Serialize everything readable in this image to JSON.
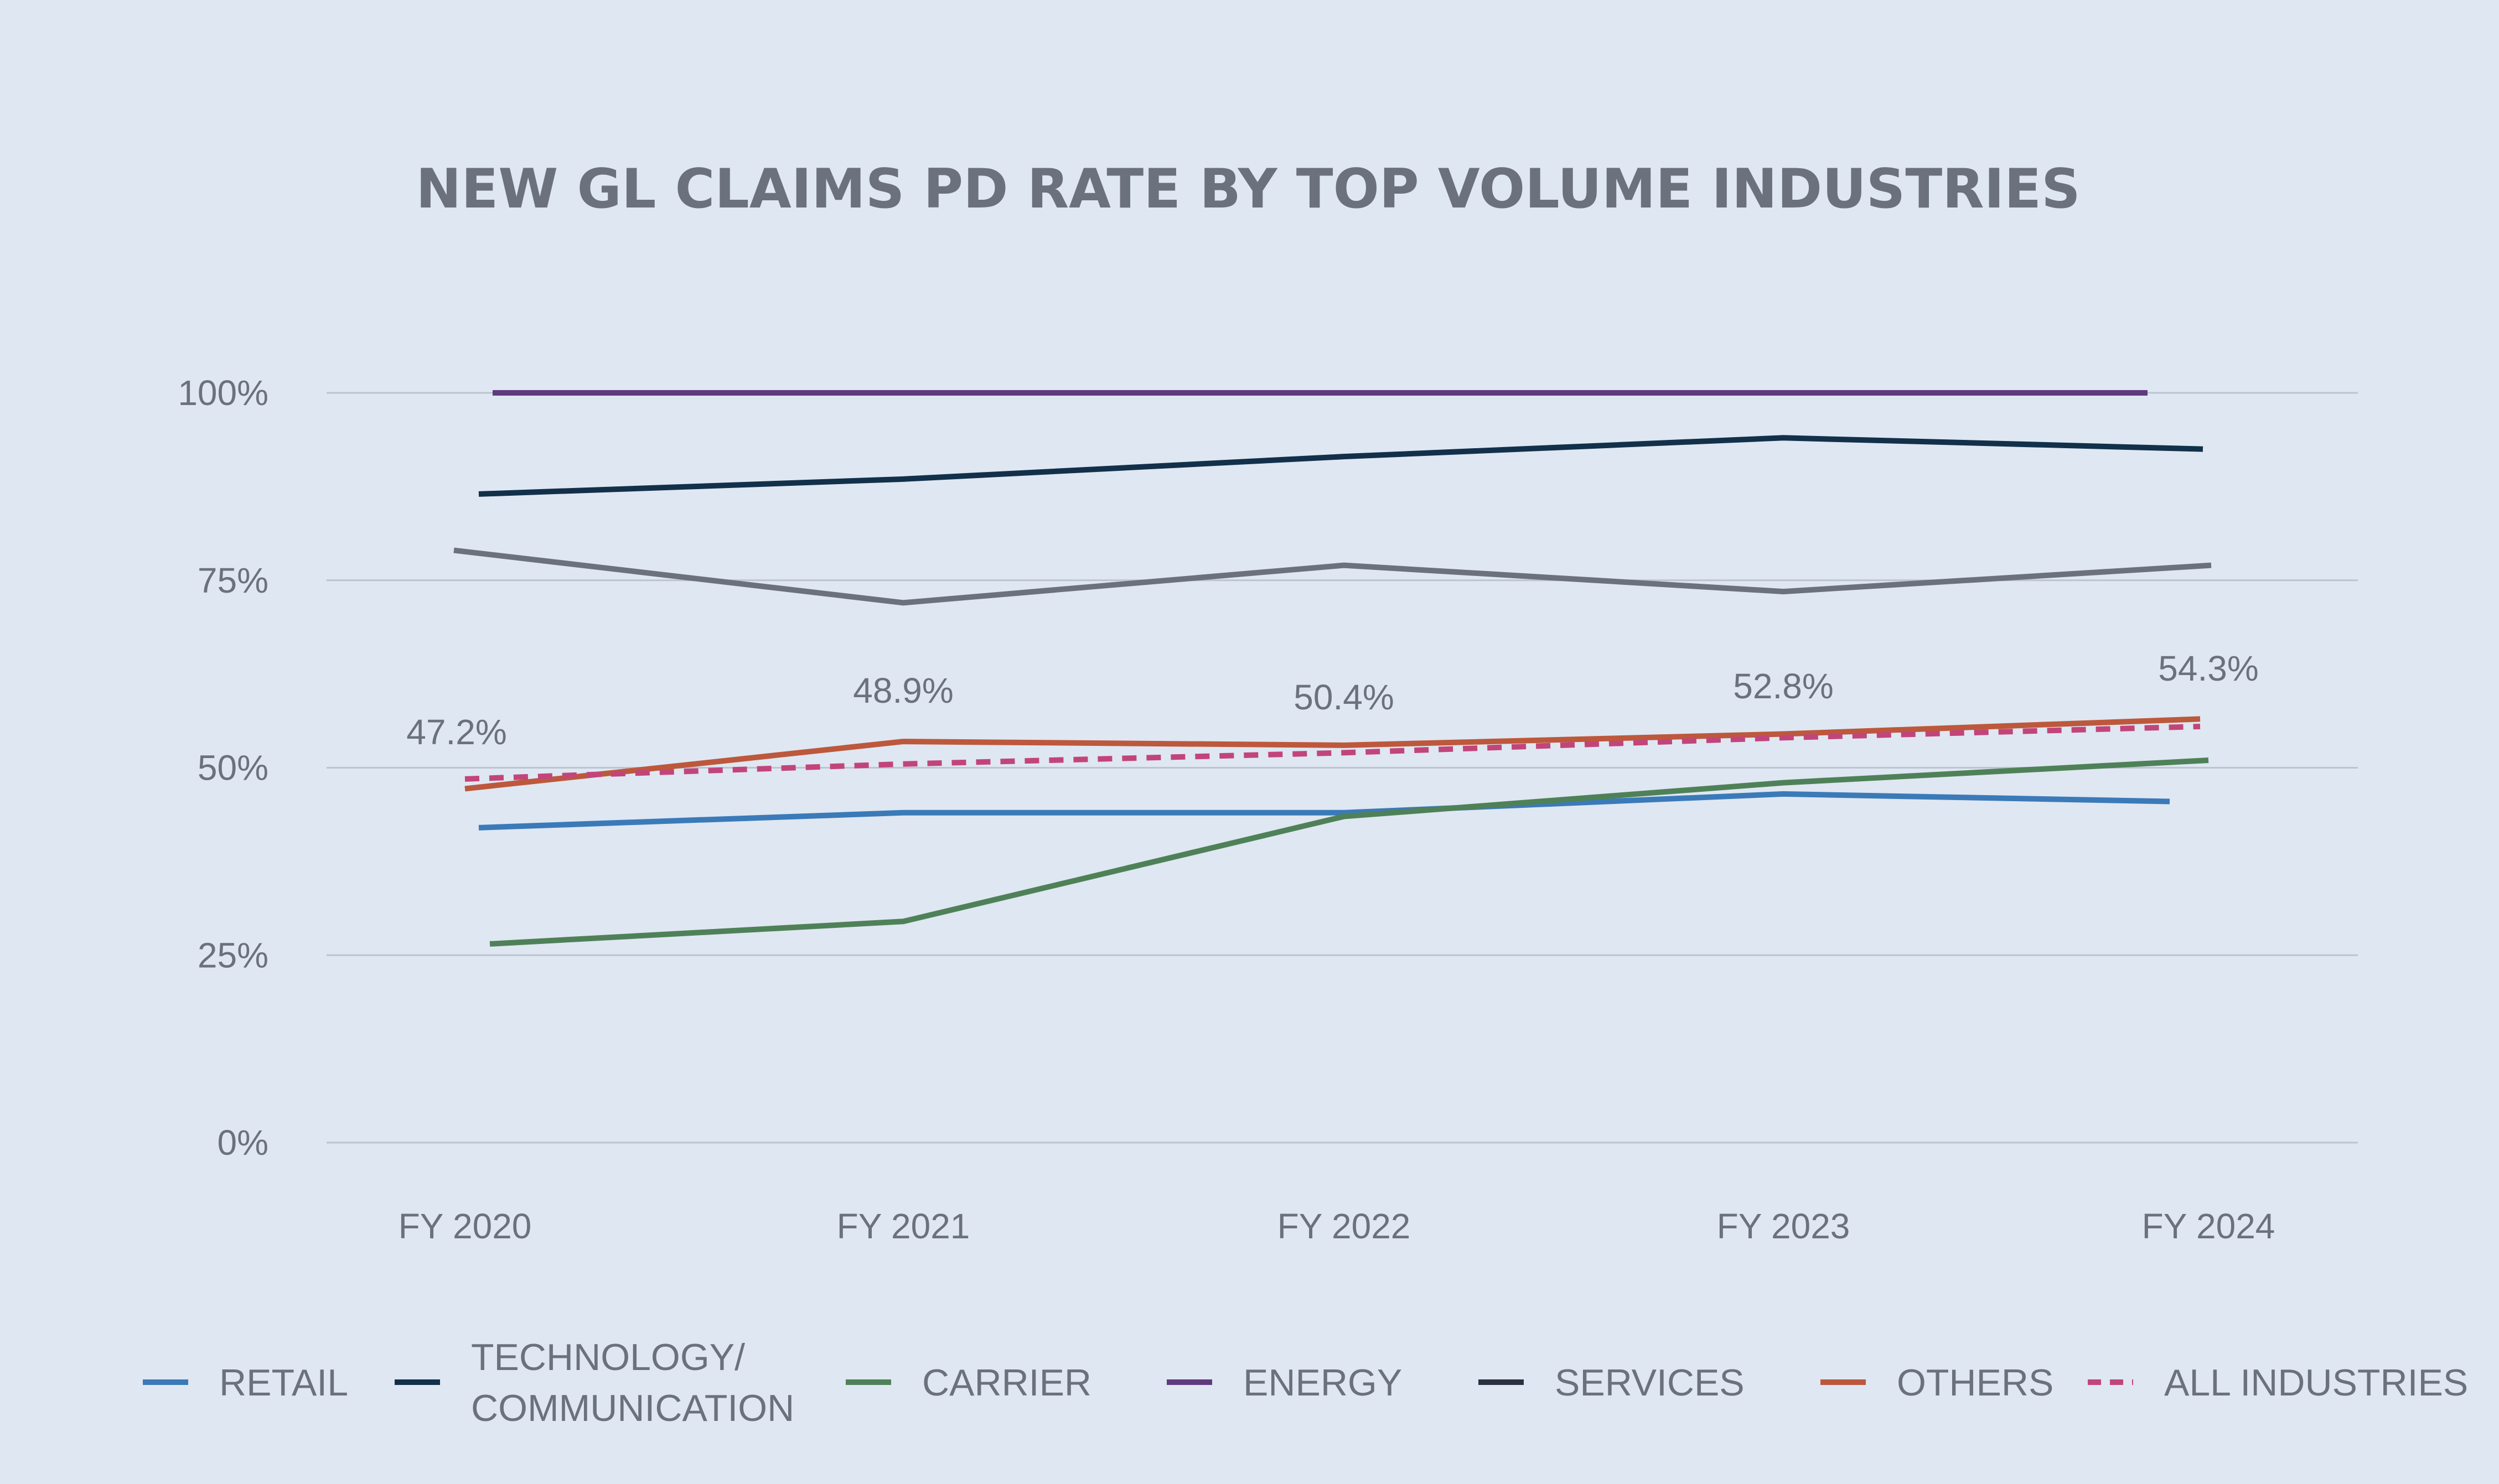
{
  "chart_data": {
    "type": "line",
    "title": "NEW GL CLAIMS PD RATE BY TOP VOLUME INDUSTRIES",
    "xlabel": "",
    "ylabel": "",
    "categories": [
      "FY 2020",
      "FY 2021",
      "FY 2022",
      "FY 2023",
      "FY 2024"
    ],
    "y_ticks": [
      "0%",
      "25%",
      "50%",
      "75%",
      "100%"
    ],
    "ylim": [
      0,
      100
    ],
    "grid": true,
    "legend_position": "bottom",
    "series": [
      {
        "name": "RETAIL",
        "values": [
          42,
          44,
          44,
          46.5,
          45.5
        ],
        "color": "#3b7ab8",
        "dashed": false
      },
      {
        "name": "TECHNOLOGY/ COMMUNICATION",
        "legend_lines": [
          "TECHNOLOGY/",
          "COMMUNICATION"
        ],
        "values": [
          86.5,
          88.5,
          91.5,
          94,
          92.5
        ],
        "color": "#12304a",
        "dashed": false
      },
      {
        "name": "CARRIER",
        "values": [
          26.5,
          29.5,
          43.5,
          48,
          51
        ],
        "color": "#4f8158",
        "dashed": false
      },
      {
        "name": "ENERGY",
        "values": [
          100,
          100,
          100,
          100,
          100
        ],
        "color": "#5f3b7d",
        "dashed": false
      },
      {
        "name": "SERVICES",
        "values": [
          79,
          72,
          77,
          73.5,
          77
        ],
        "color": "#6b717d",
        "legend_color": "#2b3140",
        "dashed": false
      },
      {
        "name": "OTHERS",
        "values": [
          47.2,
          53.5,
          53,
          54.5,
          56.5
        ],
        "color": "#bd583c",
        "dashed": false
      },
      {
        "name": "ALL INDUSTRIES",
        "values": [
          48.5,
          50.5,
          52,
          54,
          55.5
        ],
        "color": "#c2457a",
        "dashed": true
      }
    ],
    "data_labels": [
      "47.2%",
      "48.9%",
      "50.4%",
      "52.8%",
      "54.3%"
    ]
  }
}
